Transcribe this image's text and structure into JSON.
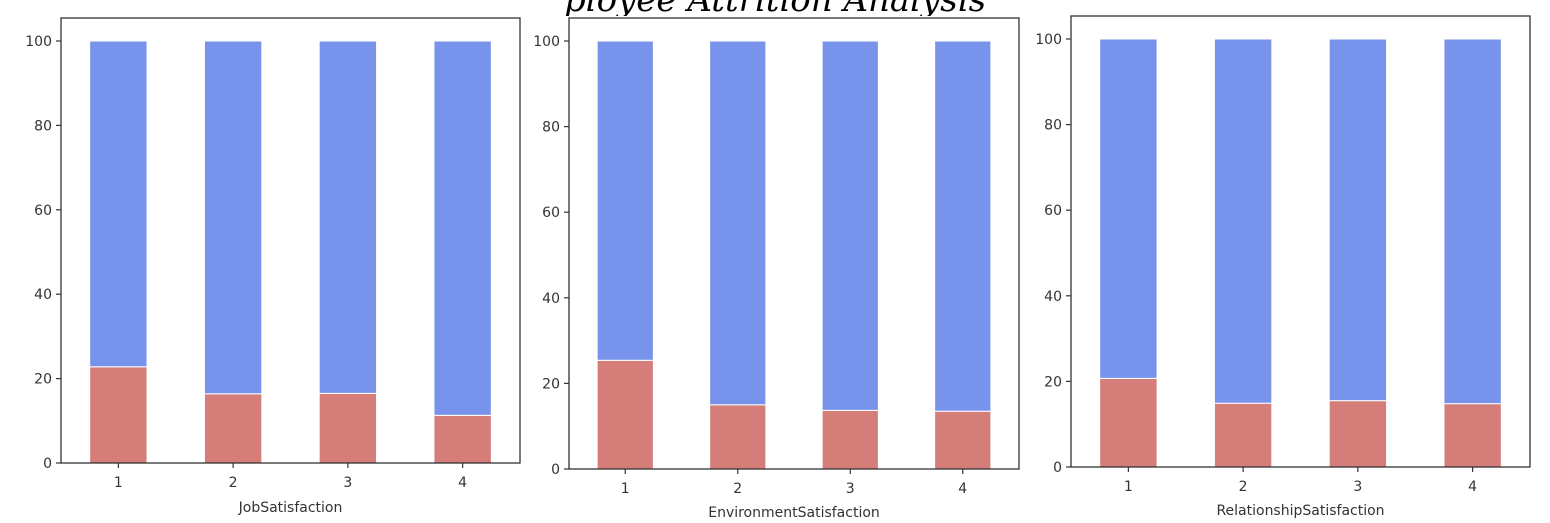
{
  "title": "ployee Attrition Analysis",
  "colors": {
    "bottom": "#d47d79",
    "top": "#7893eb",
    "frame": "#333333",
    "text": "#333333"
  },
  "chart_data": [
    {
      "type": "bar",
      "stacked": true,
      "xlabel": "JobSatisfaction",
      "ylabel": "",
      "categories": [
        "1",
        "2",
        "3",
        "4"
      ],
      "ylim": [
        0,
        100
      ],
      "yticks": [
        0,
        20,
        40,
        60,
        80,
        100
      ],
      "grid": false,
      "series": [
        {
          "values": [
            22.8,
            16.4,
            16.5,
            11.3
          ]
        },
        {
          "values": [
            77.2,
            83.6,
            83.5,
            88.7
          ]
        }
      ]
    },
    {
      "type": "bar",
      "stacked": true,
      "xlabel": "EnvironmentSatisfaction",
      "ylabel": "",
      "categories": [
        "1",
        "2",
        "3",
        "4"
      ],
      "ylim": [
        0,
        100
      ],
      "yticks": [
        0,
        20,
        40,
        60,
        80,
        100
      ],
      "grid": false,
      "series": [
        {
          "values": [
            25.4,
            15.0,
            13.7,
            13.5
          ]
        },
        {
          "values": [
            74.6,
            85.0,
            86.3,
            86.5
          ]
        }
      ]
    },
    {
      "type": "bar",
      "stacked": true,
      "xlabel": "RelationshipSatisfaction",
      "ylabel": "",
      "categories": [
        "1",
        "2",
        "3",
        "4"
      ],
      "ylim": [
        0,
        100
      ],
      "yticks": [
        0,
        20,
        40,
        60,
        80,
        100
      ],
      "grid": false,
      "series": [
        {
          "values": [
            20.7,
            14.9,
            15.5,
            14.8
          ]
        },
        {
          "values": [
            79.3,
            85.1,
            84.5,
            85.2
          ]
        }
      ]
    }
  ]
}
